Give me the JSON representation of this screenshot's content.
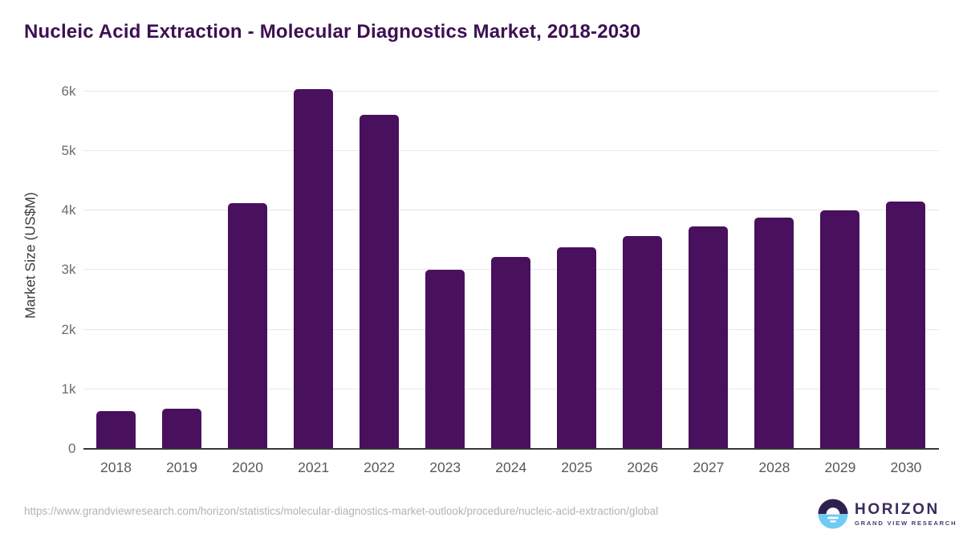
{
  "title": "Nucleic Acid Extraction - Molecular Diagnostics Market, 2018-2030",
  "chart_data": {
    "type": "bar",
    "title": "Nucleic Acid Extraction - Molecular Diagnostics Market, 2018-2030",
    "categories": [
      "2018",
      "2019",
      "2020",
      "2021",
      "2022",
      "2023",
      "2024",
      "2025",
      "2026",
      "2027",
      "2028",
      "2029",
      "2030"
    ],
    "values": [
      630,
      670,
      4120,
      6030,
      5600,
      3000,
      3210,
      3380,
      3560,
      3720,
      3870,
      4000,
      4140
    ],
    "xlabel": "",
    "ylabel": "Market Size (US$M)",
    "ylim": [
      0,
      6200
    ],
    "yticks": [
      {
        "value": 0,
        "label": "0"
      },
      {
        "value": 1000,
        "label": "1k"
      },
      {
        "value": 2000,
        "label": "2k"
      },
      {
        "value": 3000,
        "label": "3k"
      },
      {
        "value": 4000,
        "label": "4k"
      },
      {
        "value": 5000,
        "label": "5k"
      },
      {
        "value": 6000,
        "label": "6k"
      }
    ],
    "grid": true,
    "legend": "none",
    "bar_color": "#49105e",
    "gridline_color": "#e8e8e8",
    "axis_color": "#37373b"
  },
  "footer": {
    "source_url": "https://www.grandviewresearch.com/horizon/statistics/molecular-diagnostics-market-outlook/procedure/nucleic-acid-extraction/global"
  },
  "logo": {
    "brand": "HORIZON",
    "sub_brand": "GRAND VIEW RESEARCH",
    "circle_top_color": "#2e2150",
    "circle_bottom_color": "#70cbf3",
    "text_color": "#3b2b5e"
  }
}
